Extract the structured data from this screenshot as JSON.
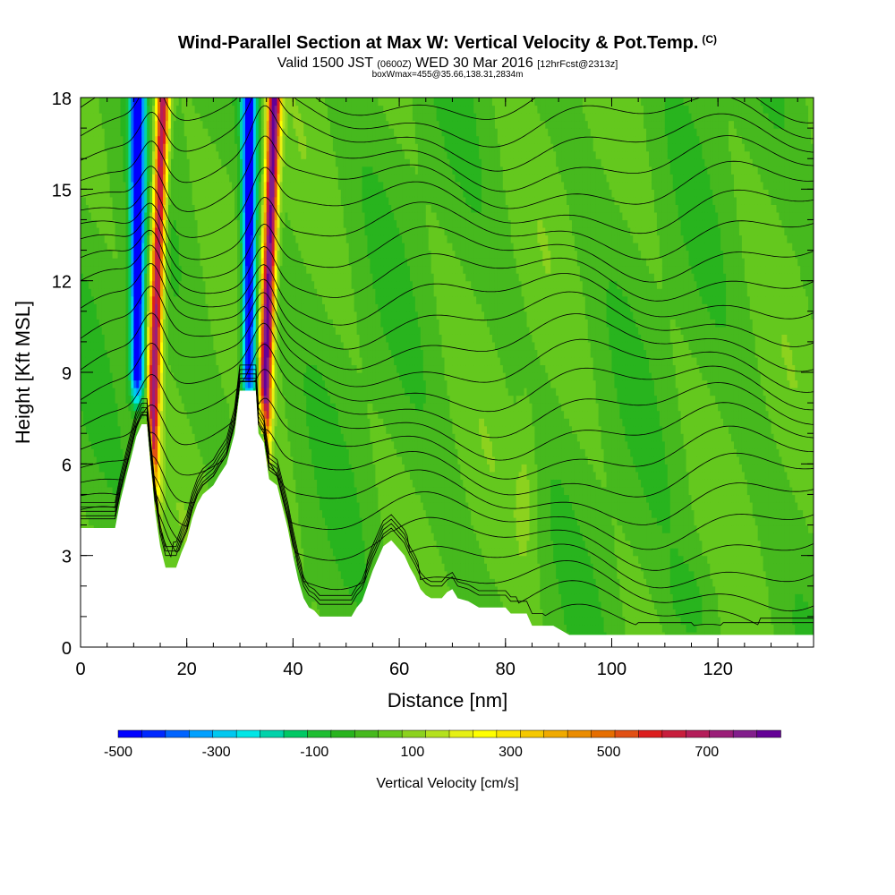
{
  "title": {
    "main": "Wind-Parallel Section at Max W: Vertical Velocity & Pot.Temp.",
    "copyright": "(C)",
    "valid_prefix": "Valid 1500 JST",
    "valid_utc": "(0600Z)",
    "valid_date": "WED 30 Mar 2016",
    "forecast": "[12hrFcst@2313z]",
    "box_info": "boxWmax=455@35.66,138.31,2834m"
  },
  "chart_data": {
    "type": "heatmap",
    "xlabel": "Distance [nm]",
    "ylabel": "Height [Kft MSL]",
    "xlim": [
      0,
      138
    ],
    "ylim": [
      0,
      18
    ],
    "x_ticks": [
      0,
      20,
      40,
      60,
      80,
      100,
      120
    ],
    "y_ticks": [
      0,
      3,
      6,
      9,
      12,
      15,
      18
    ],
    "colorbar": {
      "label": "Vertical Velocity [cm/s]",
      "tick_labels": [
        "-500",
        "-300",
        "-100",
        "100",
        "300",
        "500",
        "700"
      ],
      "tick_values": [
        -500,
        -300,
        -100,
        100,
        300,
        500,
        700
      ],
      "min": -500,
      "max": 850,
      "colors": [
        "#0000ff",
        "#0028ff",
        "#0064ff",
        "#00a0ff",
        "#00c8f0",
        "#00e6e6",
        "#00d2aa",
        "#00c864",
        "#1ebe32",
        "#28b41e",
        "#46b91e",
        "#64c81e",
        "#8cd21e",
        "#b4e11e",
        "#e6f014",
        "#ffff00",
        "#fae600",
        "#f5c800",
        "#f0aa00",
        "#eb8c00",
        "#e66e00",
        "#e15014",
        "#dc1e1e",
        "#c81e3c",
        "#b41e5a",
        "#9b1e78",
        "#821e8c",
        "#640096"
      ]
    },
    "updraft_columns": [
      {
        "x_top": 15.5,
        "x_base": 13.5,
        "max_velocity": 700
      },
      {
        "x_top": 36.5,
        "x_base": 34.5,
        "max_velocity": 800
      }
    ],
    "downdraft_columns": [
      {
        "x_top": 12.5,
        "x_base": 12.5,
        "min_velocity": -500
      },
      {
        "x_top": 33.5,
        "x_base": 33.5,
        "min_velocity": -500
      }
    ],
    "terrain_height_kft": [
      [
        0,
        3.9
      ],
      [
        6.5,
        3.9
      ],
      [
        7.5,
        4.8
      ],
      [
        8.5,
        5.5
      ],
      [
        9.5,
        6.2
      ],
      [
        10.5,
        6.9
      ],
      [
        11.5,
        7.3
      ],
      [
        12.5,
        7.3
      ],
      [
        13,
        6.3
      ],
      [
        14,
        4.5
      ],
      [
        15,
        3.3
      ],
      [
        16,
        2.6
      ],
      [
        18,
        2.6
      ],
      [
        19,
        3.1
      ],
      [
        20,
        3.5
      ],
      [
        21,
        4.2
      ],
      [
        22,
        4.7
      ],
      [
        23,
        5.0
      ],
      [
        25,
        5.3
      ],
      [
        26,
        5.6
      ],
      [
        27.5,
        6.0
      ],
      [
        29,
        7.0
      ],
      [
        30,
        8.4
      ],
      [
        33,
        8.4
      ],
      [
        33.5,
        7.0
      ],
      [
        34.5,
        6.7
      ],
      [
        35.5,
        5.5
      ],
      [
        37,
        5.3
      ],
      [
        38,
        4.6
      ],
      [
        39,
        3.9
      ],
      [
        40,
        3.0
      ],
      [
        41,
        2.2
      ],
      [
        42,
        1.6
      ],
      [
        43,
        1.3
      ],
      [
        44,
        1.2
      ],
      [
        45,
        1.0
      ],
      [
        51,
        1.0
      ],
      [
        52,
        1.3
      ],
      [
        53,
        1.5
      ],
      [
        54,
        2.0
      ],
      [
        55,
        2.5
      ],
      [
        56,
        2.9
      ],
      [
        57,
        3.3
      ],
      [
        58.5,
        3.5
      ],
      [
        59.5,
        3.3
      ],
      [
        61,
        3.0
      ],
      [
        62,
        2.6
      ],
      [
        63,
        2.3
      ],
      [
        64,
        1.9
      ],
      [
        65,
        1.7
      ],
      [
        66,
        1.6
      ],
      [
        68,
        1.6
      ],
      [
        69,
        1.8
      ],
      [
        70,
        1.9
      ],
      [
        71,
        1.6
      ],
      [
        73,
        1.5
      ],
      [
        75,
        1.3
      ],
      [
        80,
        1.3
      ],
      [
        81,
        1.1
      ],
      [
        84,
        1.1
      ],
      [
        85,
        0.7
      ],
      [
        89,
        0.7
      ],
      [
        92,
        0.4
      ],
      [
        138,
        0.4
      ]
    ],
    "theta_contours": {
      "count": 25,
      "min_height_kft": 0.5,
      "max_height_kft": 18
    }
  }
}
